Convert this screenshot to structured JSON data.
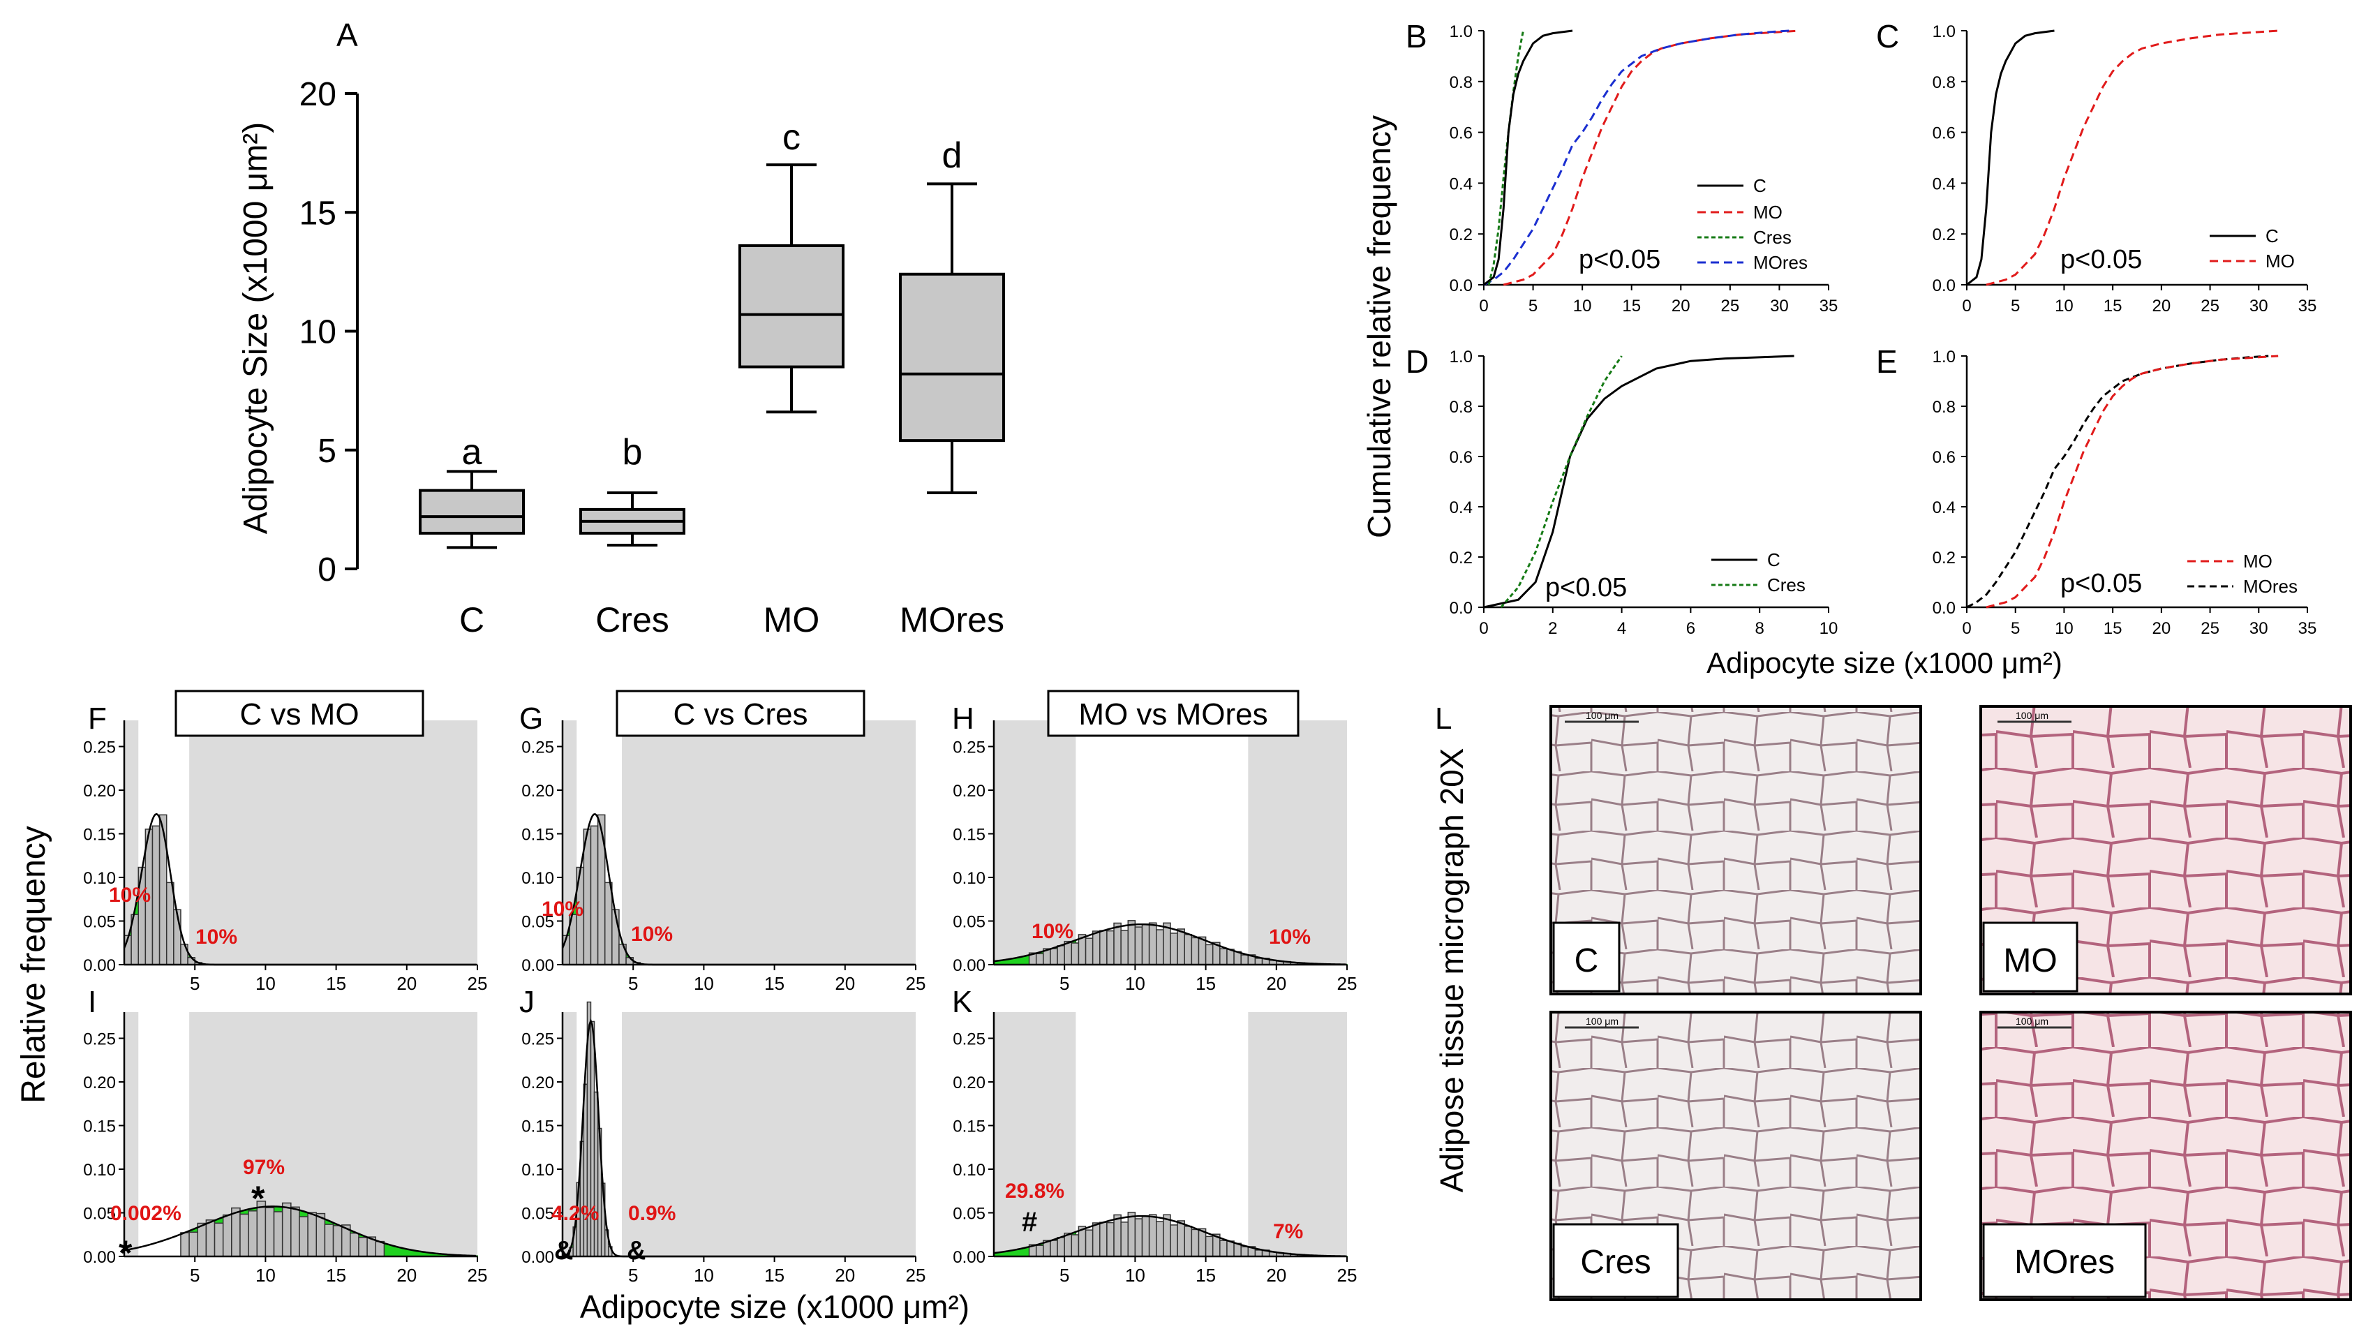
{
  "panel_letters": {
    "A": "A",
    "B": "B",
    "C": "C",
    "D": "D",
    "E": "E",
    "F": "F",
    "G": "G",
    "H": "H",
    "I": "I",
    "J": "J",
    "K": "K",
    "L": "L"
  },
  "chart_data": [
    {
      "id": "A",
      "type": "box",
      "ylabel": "Adipocyte Size (x1000 μm²)",
      "ylim": [
        0,
        20
      ],
      "yticks": [
        "0",
        "5",
        "10",
        "15",
        "20"
      ],
      "categories": [
        "C",
        "Cres",
        "MO",
        "MOres"
      ],
      "letters": [
        "a",
        "b",
        "c",
        "d"
      ],
      "boxes": [
        {
          "min": 0.9,
          "q1": 1.5,
          "median": 2.2,
          "q3": 3.3,
          "max": 4.1
        },
        {
          "min": 1.0,
          "q1": 1.5,
          "median": 2.0,
          "q3": 2.5,
          "max": 3.2
        },
        {
          "min": 6.6,
          "q1": 8.5,
          "median": 10.7,
          "q3": 13.6,
          "max": 17.0
        },
        {
          "min": 3.2,
          "q1": 5.4,
          "median": 8.2,
          "q3": 12.4,
          "max": 16.2
        }
      ]
    },
    {
      "id": "cdf",
      "type": "line",
      "ylabel": "Cumulative relative  frequency",
      "xlabel": "Adipocyte size (x1000 μm²)",
      "yticks": [
        "0.0",
        "0.2",
        "0.4",
        "0.6",
        "0.8",
        "1.0"
      ],
      "xticks35": [
        "0",
        "5",
        "10",
        "15",
        "20",
        "25",
        "30",
        "35"
      ],
      "xticks10": [
        "0",
        "2",
        "4",
        "6",
        "8",
        "10"
      ],
      "pvalue": "p<0.05",
      "legend": {
        "C": "C",
        "MO": "MO",
        "Cres": "Cres",
        "MOres": "MOres"
      },
      "series": {
        "C": [
          [
            0,
            0
          ],
          [
            1,
            0.03
          ],
          [
            1.5,
            0.1
          ],
          [
            2,
            0.3
          ],
          [
            2.5,
            0.6
          ],
          [
            3,
            0.75
          ],
          [
            3.5,
            0.83
          ],
          [
            4,
            0.88
          ],
          [
            5,
            0.95
          ],
          [
            6,
            0.98
          ],
          [
            7,
            0.99
          ],
          [
            9,
            1
          ]
        ],
        "Cres": [
          [
            0.5,
            0
          ],
          [
            1,
            0.08
          ],
          [
            1.5,
            0.22
          ],
          [
            2,
            0.42
          ],
          [
            2.5,
            0.6
          ],
          [
            3,
            0.76
          ],
          [
            3.5,
            0.9
          ],
          [
            4,
            1
          ]
        ],
        "MO": [
          [
            2,
            0
          ],
          [
            3,
            0.01
          ],
          [
            4,
            0.02
          ],
          [
            5,
            0.04
          ],
          [
            6,
            0.08
          ],
          [
            7,
            0.12
          ],
          [
            8,
            0.2
          ],
          [
            9,
            0.3
          ],
          [
            10,
            0.42
          ],
          [
            11,
            0.52
          ],
          [
            12,
            0.62
          ],
          [
            13,
            0.7
          ],
          [
            14,
            0.78
          ],
          [
            15,
            0.84
          ],
          [
            16,
            0.88
          ],
          [
            17,
            0.91
          ],
          [
            18,
            0.93
          ],
          [
            20,
            0.95
          ],
          [
            23,
            0.97
          ],
          [
            26,
            0.985
          ],
          [
            30,
            0.995
          ],
          [
            32,
            1
          ]
        ],
        "MOres": [
          [
            0,
            0
          ],
          [
            1,
            0.02
          ],
          [
            2,
            0.05
          ],
          [
            3,
            0.1
          ],
          [
            4,
            0.16
          ],
          [
            5,
            0.22
          ],
          [
            6,
            0.3
          ],
          [
            7,
            0.38
          ],
          [
            8,
            0.46
          ],
          [
            9,
            0.55
          ],
          [
            10,
            0.6
          ],
          [
            11,
            0.66
          ],
          [
            12,
            0.73
          ],
          [
            13,
            0.79
          ],
          [
            14,
            0.84
          ],
          [
            15,
            0.87
          ],
          [
            16,
            0.9
          ],
          [
            18,
            0.93
          ],
          [
            20,
            0.95
          ],
          [
            23,
            0.97
          ],
          [
            26,
            0.985
          ],
          [
            29,
            0.995
          ],
          [
            31,
            1
          ]
        ]
      }
    },
    {
      "id": "hist",
      "type": "bar",
      "ylabel": "Relative frequency",
      "xlabel": "Adipocyte size (x1000 μm²)",
      "yticks": [
        "0.00",
        "0.05",
        "0.10",
        "0.15",
        "0.20",
        "0.25"
      ],
      "xticks": [
        "5",
        "10",
        "15",
        "20",
        "25"
      ],
      "titles": {
        "F": "C vs MO",
        "G": "C vs Cres",
        "H": "MO vs MOres"
      },
      "percent_labels": {
        "F": [
          "10%",
          "10%"
        ],
        "G": [
          "10%",
          "10%"
        ],
        "H": [
          "10%",
          "10%"
        ],
        "I": [
          "0.002%",
          "97%"
        ],
        "J": [
          "4.2%",
          "0.9%"
        ],
        "K": [
          "29.8%",
          "7%"
        ]
      },
      "markers": {
        "I_left": "*",
        "I_right": "*",
        "J_left": "&",
        "J_right": "&",
        "K_left": "#"
      }
    }
  ],
  "micrographs": {
    "axis_label": "Adipose tissue micrograph 20X",
    "scale_bar": "100 μm",
    "labels": [
      "C",
      "MO",
      "Cres",
      "MOres"
    ]
  }
}
